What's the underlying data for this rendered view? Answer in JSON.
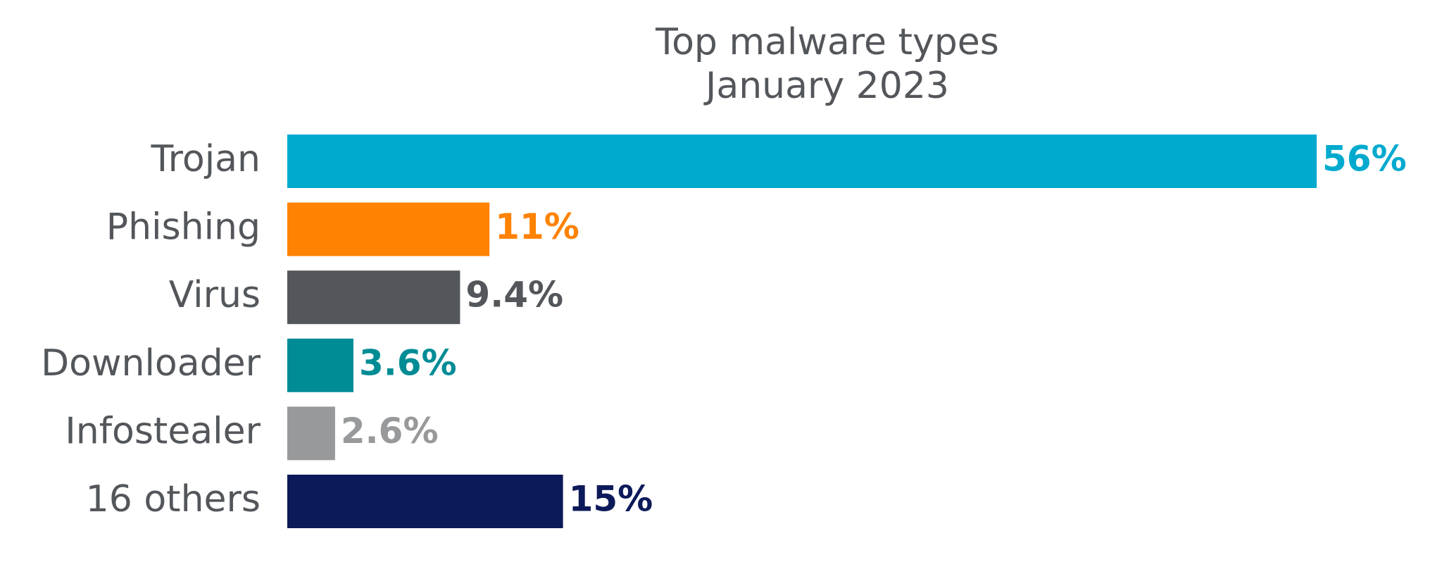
{
  "chart_data": {
    "type": "hbar",
    "title": "Top malware types",
    "subtitle": "January 2023",
    "categories": [
      "Trojan",
      "Phishing",
      "Virus",
      "Downloader",
      "Infostealer",
      "16 others"
    ],
    "values": [
      56,
      11,
      9.4,
      3.6,
      2.6,
      15
    ],
    "value_labels": [
      "56%",
      "11%",
      "9.4%",
      "3.6%",
      "2.6%",
      "15%"
    ],
    "colors": [
      "#00aacf",
      "#ff8200",
      "#53565a",
      "#008c95",
      "#97999b",
      "#0c1a5a"
    ]
  }
}
